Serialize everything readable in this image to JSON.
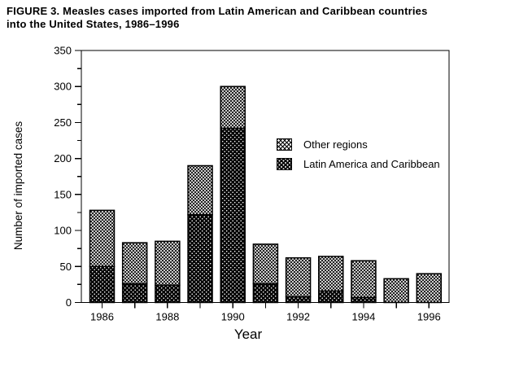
{
  "figure": {
    "title_line1": "FIGURE 3. Measles cases imported from Latin American and Caribbean countries",
    "title_line2": "into the United States, 1986–1996"
  },
  "legend": {
    "items": [
      {
        "label": "Other regions",
        "swatch": "light-crosshatch"
      },
      {
        "label": "Latin America and Caribbean",
        "swatch": "black-dots"
      }
    ]
  },
  "chart_data": {
    "type": "bar",
    "stacked": true,
    "title": "FIGURE 3. Measles cases imported from Latin American and Caribbean countries into the United States, 1986–1996",
    "xlabel": "Year",
    "ylabel": "Number of imported cases",
    "ylim": [
      0,
      350
    ],
    "y_major_step": 50,
    "y_minor_step": 25,
    "y_tick_labels": [
      "0",
      "50",
      "100",
      "150",
      "200",
      "250",
      "300",
      "350"
    ],
    "categories": [
      "1986",
      "1987",
      "1988",
      "1989",
      "1990",
      "1991",
      "1992",
      "1993",
      "1994",
      "1995",
      "1996"
    ],
    "x_tick_labels_shown": [
      "1986",
      "1988",
      "1990",
      "1992",
      "1994",
      "1996"
    ],
    "series": [
      {
        "name": "Latin America and Caribbean",
        "pattern": "black-dots",
        "values": [
          50,
          26,
          24,
          122,
          242,
          26,
          8,
          16,
          7,
          0,
          0
        ]
      },
      {
        "name": "Other regions",
        "pattern": "light-crosshatch",
        "values": [
          78,
          57,
          61,
          68,
          58,
          55,
          54,
          48,
          51,
          33,
          40
        ]
      }
    ],
    "totals": [
      128,
      83,
      85,
      190,
      300,
      81,
      62,
      64,
      58,
      33,
      40
    ],
    "legend_position": "inside-upper-right",
    "grid": false,
    "colors": {
      "bar_outline": "#000000",
      "background": "#ffffff",
      "text": "#000000"
    }
  }
}
